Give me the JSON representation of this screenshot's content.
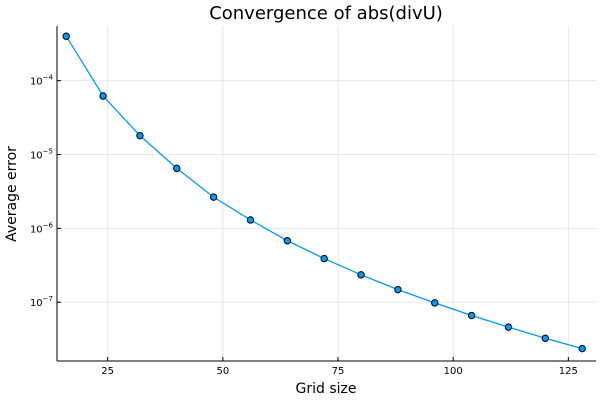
{
  "chart_data": {
    "type": "line",
    "title": "Convergence of abs(divU)",
    "xlabel": "Grid size",
    "ylabel": "Average error",
    "yscale": "log",
    "xlim": [
      14,
      131
    ],
    "ylim": [
      1.6e-08,
      0.00055
    ],
    "x_ticks": [
      25,
      50,
      75,
      100,
      125
    ],
    "y_ticks": [
      {
        "value": 1e-07,
        "base": "10",
        "exp": "−7"
      },
      {
        "value": 1e-06,
        "base": "10",
        "exp": "−6"
      },
      {
        "value": 1e-05,
        "base": "10",
        "exp": "−5"
      },
      {
        "value": 0.0001,
        "base": "10",
        "exp": "−4"
      }
    ],
    "grid": true,
    "legend": "none",
    "series": [
      {
        "color": "#009af9",
        "marker": "circle",
        "x": [
          16,
          24,
          32,
          40,
          48,
          56,
          64,
          72,
          80,
          88,
          96,
          104,
          112,
          120,
          128
        ],
        "y": [
          0.0004,
          6.2e-05,
          1.8e-05,
          6.5e-06,
          2.65e-06,
          1.3e-06,
          6.8e-07,
          3.9e-07,
          2.35e-07,
          1.48e-07,
          9.8e-08,
          6.6e-08,
          4.6e-08,
          3.25e-08,
          2.35e-08
        ]
      }
    ]
  }
}
